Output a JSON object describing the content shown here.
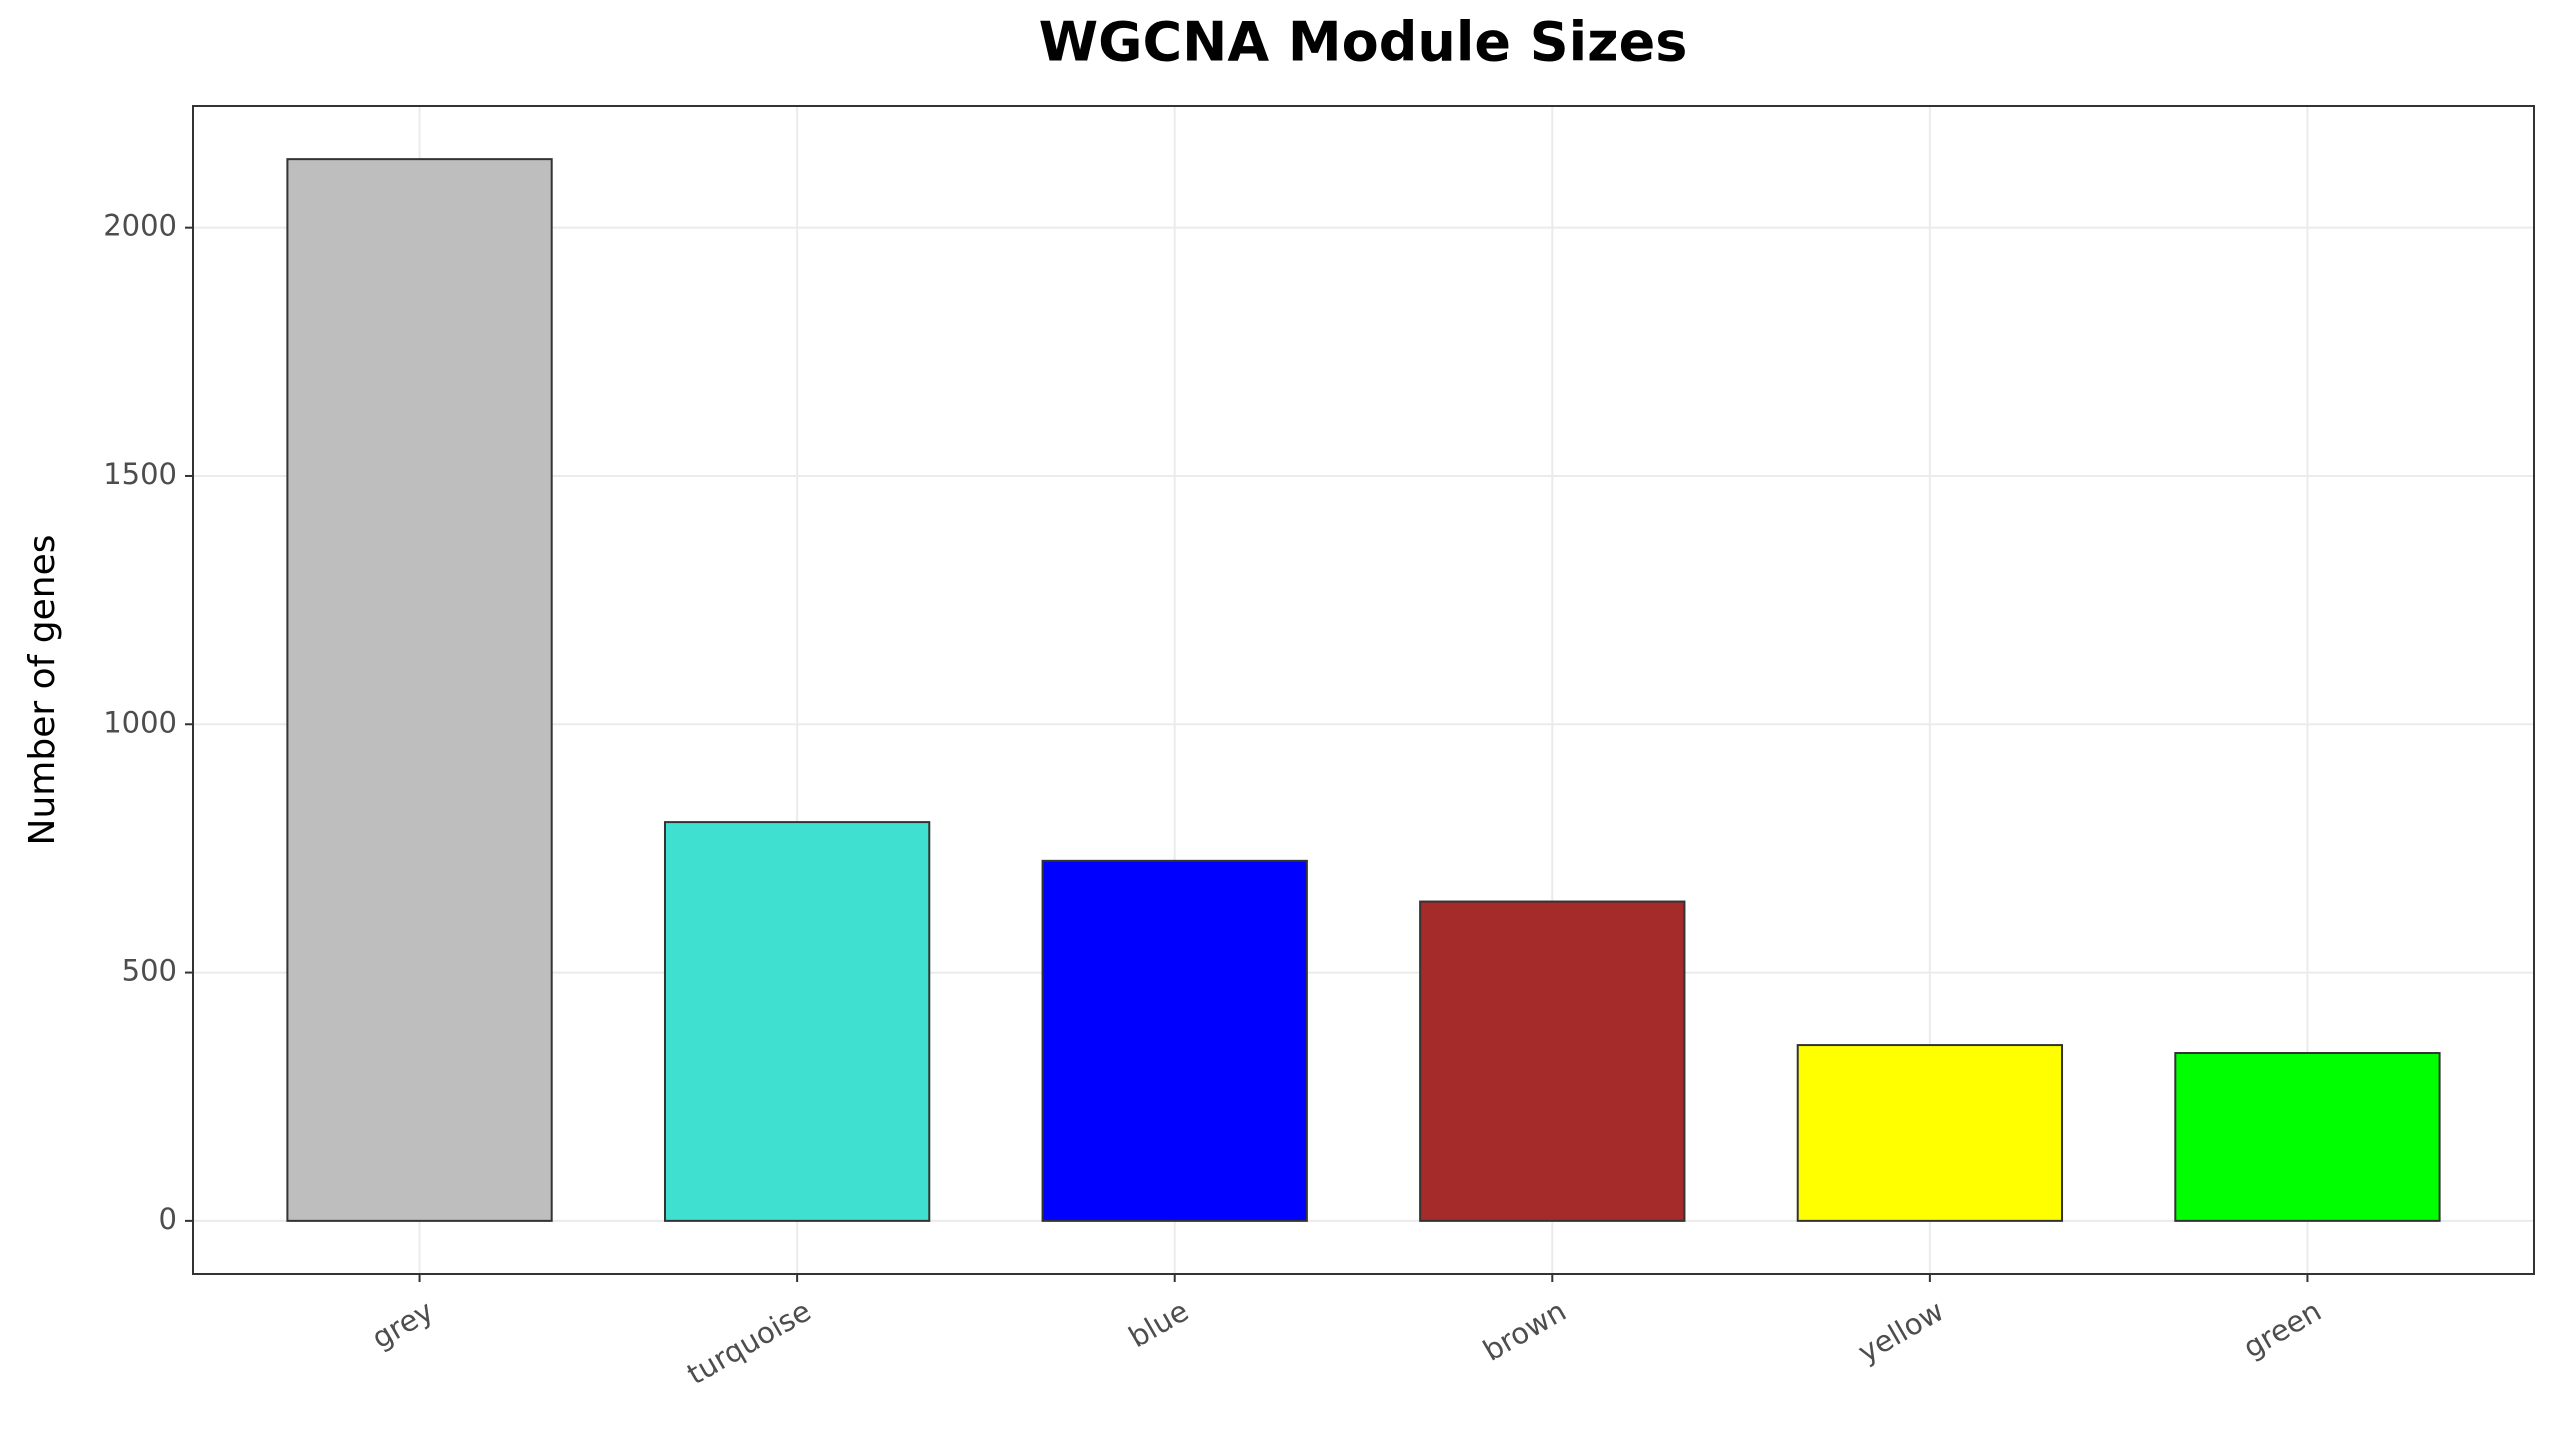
{
  "chart_data": {
    "type": "bar",
    "title": "WGCNA Module Sizes",
    "ylabel": "Number of genes",
    "categories": [
      "grey",
      "turquoise",
      "blue",
      "brown",
      "yellow",
      "green"
    ],
    "values": [
      2138,
      803,
      725,
      643,
      354,
      338
    ],
    "colors": [
      "#bebebe",
      "#40e0d0",
      "#0000ff",
      "#a52a2a",
      "#ffff00",
      "#00ff00"
    ],
    "ylim": [
      -107,
      2245
    ],
    "yticks": [
      0,
      500,
      1000,
      1500,
      2000
    ],
    "grid": true
  }
}
